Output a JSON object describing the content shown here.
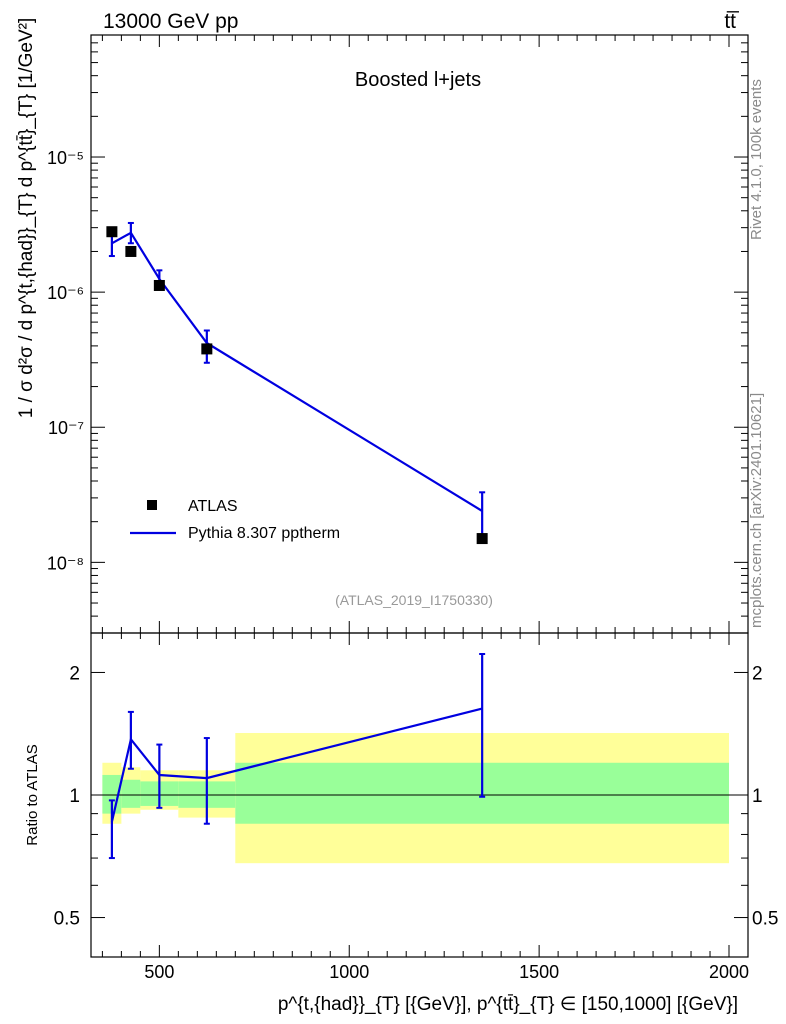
{
  "header": {
    "left": "13000 GeV pp",
    "right": "tt̅"
  },
  "side_labels": {
    "rivet": "Rivet 4.1.0,  100k events",
    "mcplots": "mcplots.cern.ch [arXiv:2401.10621]"
  },
  "chart_data": [
    {
      "type": "line",
      "panel": "main",
      "title": "Boosted l+jets",
      "analysis_tag": "(ATLAS_2019_I1750330)",
      "ylabel": "1 / σ d²σ / d p^{t,{had}}_{T} d p^{tt̄}_{T} [1/GeV²]",
      "yscale": "log",
      "xlim": [
        320,
        2050
      ],
      "ylim": [
        3e-09,
        8e-05
      ],
      "y_ticks": [
        {
          "value": 1e-08,
          "label": "10⁻⁸"
        },
        {
          "value": 1e-07,
          "label": "10⁻⁷"
        },
        {
          "value": 1e-06,
          "label": "10⁻⁶"
        },
        {
          "value": 1e-05,
          "label": "10⁻⁵"
        }
      ],
      "legend": [
        "ATLAS",
        "Pythia 8.307 pptherm"
      ],
      "legend_position": "bottom-left",
      "series": [
        {
          "name": "ATLAS",
          "style": "markers",
          "color": "#000000",
          "points": [
            {
              "x": 375,
              "y": 2.8e-06
            },
            {
              "x": 425,
              "y": 2e-06
            },
            {
              "x": 500,
              "y": 1.12e-06
            },
            {
              "x": 625,
              "y": 3.8e-07
            },
            {
              "x": 1350,
              "y": 1.5e-08
            }
          ]
        },
        {
          "name": "Pythia 8.307 pptherm",
          "style": "line",
          "color": "#0000e0",
          "points": [
            {
              "x": 375,
              "y": 2.3e-06,
              "ylo": 1.85e-06,
              "yhi": 2.7e-06
            },
            {
              "x": 425,
              "y": 2.75e-06,
              "ylo": 2.3e-06,
              "yhi": 3.25e-06
            },
            {
              "x": 500,
              "y": 1.25e-06,
              "ylo": 1.05e-06,
              "yhi": 1.45e-06
            },
            {
              "x": 625,
              "y": 4.2e-07,
              "ylo": 3e-07,
              "yhi": 5.2e-07
            },
            {
              "x": 1350,
              "y": 2.4e-08,
              "ylo": 1.5e-08,
              "yhi": 3.3e-08
            }
          ]
        }
      ]
    },
    {
      "type": "line",
      "panel": "ratio",
      "ylabel": "Ratio to ATLAS",
      "xlabel": "p^{t,{had}}_{T} [{GeV}], p^{tt̄}_{T} ∈ [150,1000] [{GeV}]",
      "yscale": "log",
      "xlim": [
        320,
        2050
      ],
      "ylim": [
        0.4,
        2.5
      ],
      "x_ticks": [
        {
          "value": 500,
          "label": "500"
        },
        {
          "value": 1000,
          "label": "1000"
        },
        {
          "value": 1500,
          "label": "1500"
        },
        {
          "value": 2000,
          "label": "2000"
        }
      ],
      "y_ticks": [
        {
          "value": 0.5,
          "label": "0.5"
        },
        {
          "value": 1,
          "label": "1"
        },
        {
          "value": 2,
          "label": "2"
        }
      ],
      "uncertainty_bands": [
        {
          "x0": 350,
          "x1": 400,
          "yellow": [
            0.85,
            1.2
          ],
          "green": [
            0.9,
            1.12
          ]
        },
        {
          "x0": 400,
          "x1": 450,
          "yellow": [
            0.9,
            1.17
          ],
          "green": [
            0.93,
            1.09
          ]
        },
        {
          "x0": 450,
          "x1": 550,
          "yellow": [
            0.92,
            1.15
          ],
          "green": [
            0.94,
            1.08
          ]
        },
        {
          "x0": 550,
          "x1": 700,
          "yellow": [
            0.88,
            1.15
          ],
          "green": [
            0.93,
            1.08
          ]
        },
        {
          "x0": 700,
          "x1": 2000,
          "yellow": [
            0.68,
            1.42
          ],
          "green": [
            0.85,
            1.2
          ]
        }
      ],
      "series": [
        {
          "name": "Pythia 8.307 pptherm / ATLAS",
          "color": "#0000e0",
          "points": [
            {
              "x": 375,
              "y": 0.86,
              "ylo": 0.7,
              "yhi": 0.97
            },
            {
              "x": 425,
              "y": 1.37,
              "ylo": 1.16,
              "yhi": 1.6
            },
            {
              "x": 500,
              "y": 1.12,
              "ylo": 0.93,
              "yhi": 1.33
            },
            {
              "x": 625,
              "y": 1.1,
              "ylo": 0.85,
              "yhi": 1.38
            },
            {
              "x": 1350,
              "y": 1.63,
              "ylo": 0.99,
              "yhi": 2.22
            }
          ]
        }
      ]
    }
  ]
}
